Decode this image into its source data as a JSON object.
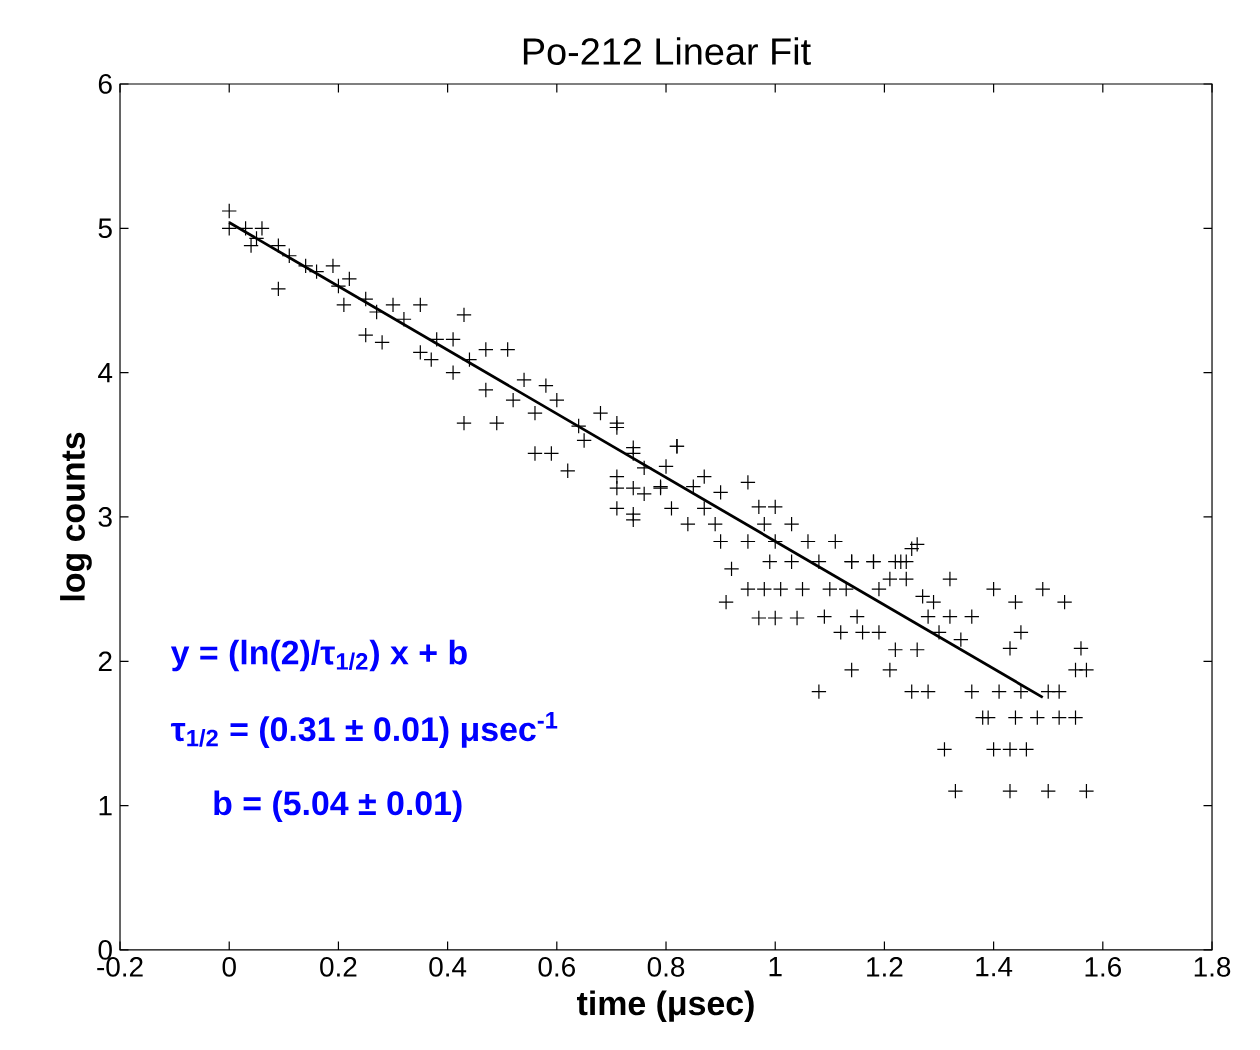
{
  "chart_data": {
    "type": "scatter",
    "title": "Po-212 Linear Fit",
    "xlabel": "time (μsec)",
    "ylabel": "log counts",
    "xlim": [
      -0.2,
      1.8
    ],
    "xticks": [
      -0.2,
      0,
      0.2,
      0.4,
      0.6,
      0.8,
      1,
      1.2,
      1.4,
      1.6,
      1.8
    ],
    "ylim": [
      0,
      6
    ],
    "yticks": [
      0,
      1,
      2,
      3,
      4,
      5,
      6
    ],
    "grid": false,
    "annotations": [
      "y = (ln(2)/τ$_{1/2}$) x + b",
      "τ$_{1/2}$ = (0.31 ± 0.01) μsec$^{-1}$",
      "b = (5.04 ± 0.01)"
    ],
    "series": [
      {
        "marker": "cross",
        "color": "#000000",
        "x": [
          0.0,
          0.0,
          0.03,
          0.05,
          0.06,
          0.04,
          0.09,
          0.11,
          0.09,
          0.14,
          0.16,
          0.19,
          0.2,
          0.22,
          0.21,
          0.25,
          0.27,
          0.3,
          0.25,
          0.28,
          0.32,
          0.35,
          0.43,
          0.35,
          0.38,
          0.37,
          0.41,
          0.41,
          0.44,
          0.47,
          0.51,
          0.43,
          0.47,
          0.49,
          0.52,
          0.54,
          0.58,
          0.56,
          0.6,
          0.56,
          0.59,
          0.62,
          0.64,
          0.68,
          0.71,
          0.65,
          0.71,
          0.74,
          0.76,
          0.8,
          0.82,
          0.74,
          0.79,
          1.33,
          1.43,
          1.5,
          1.57,
          1.31,
          1.4,
          1.43,
          1.46,
          1.38,
          1.39,
          1.44,
          1.48,
          1.52,
          1.55,
          1.36,
          1.41,
          1.45,
          1.5,
          1.52,
          1.55,
          1.57,
          1.56,
          1.45,
          1.43,
          1.4,
          1.44,
          1.49,
          1.53,
          1.32,
          1.25,
          1.22,
          1.24,
          1.18,
          1.14,
          1.21,
          1.24,
          1.27,
          1.29,
          1.28,
          1.32,
          1.36,
          1.3,
          1.34,
          1.22,
          1.26,
          1.21,
          1.14,
          1.25,
          1.28,
          1.08,
          1.12,
          1.16,
          1.19,
          1.09,
          1.15,
          0.97,
          1.0,
          1.04,
          0.91,
          0.95,
          0.98,
          1.01,
          1.05,
          1.1,
          1.13,
          1.19,
          0.92,
          0.99,
          1.03,
          1.08,
          1.14,
          1.18,
          1.23,
          0.9,
          0.95,
          1.0,
          1.06,
          1.11,
          1.26,
          0.89,
          0.84,
          0.98,
          1.03,
          0.74,
          0.71,
          0.81,
          0.87,
          0.97,
          1.0,
          0.82,
          0.95,
          0.87,
          0.85,
          0.9,
          0.71,
          0.74,
          0.76,
          0.79,
          0.71,
          0.74
        ],
        "values": [
          5.12,
          5.0,
          5.0,
          4.93,
          5.0,
          4.88,
          4.88,
          4.81,
          4.58,
          4.74,
          4.7,
          4.74,
          4.6,
          4.65,
          4.47,
          4.51,
          4.42,
          4.47,
          4.26,
          4.21,
          4.37,
          4.47,
          4.4,
          4.14,
          4.23,
          4.09,
          4.23,
          4.0,
          4.09,
          4.16,
          4.16,
          3.65,
          3.88,
          3.65,
          3.81,
          3.95,
          3.91,
          3.72,
          3.81,
          3.44,
          3.44,
          3.32,
          3.63,
          3.72,
          3.65,
          3.53,
          3.28,
          3.02,
          3.16,
          3.35,
          3.49,
          3.44,
          3.21,
          1.1,
          1.1,
          1.1,
          1.1,
          1.39,
          1.39,
          1.39,
          1.39,
          1.61,
          1.61,
          1.61,
          1.61,
          1.61,
          1.61,
          1.79,
          1.79,
          1.79,
          1.79,
          1.79,
          1.94,
          1.94,
          2.09,
          2.2,
          2.09,
          2.5,
          2.41,
          2.5,
          2.41,
          2.57,
          2.78,
          2.69,
          2.69,
          2.69,
          2.69,
          2.57,
          2.57,
          2.45,
          2.41,
          2.31,
          2.31,
          2.31,
          2.2,
          2.15,
          2.08,
          2.08,
          1.94,
          1.94,
          1.79,
          1.79,
          1.79,
          2.2,
          2.2,
          2.2,
          2.31,
          2.31,
          2.3,
          2.3,
          2.3,
          2.41,
          2.5,
          2.5,
          2.5,
          2.5,
          2.5,
          2.5,
          2.5,
          2.64,
          2.69,
          2.69,
          2.69,
          2.69,
          2.69,
          2.69,
          2.83,
          2.83,
          2.83,
          2.83,
          2.83,
          2.81,
          2.95,
          2.95,
          2.95,
          2.95,
          2.98,
          3.06,
          3.06,
          3.06,
          3.07,
          3.07,
          3.49,
          3.24,
          3.28,
          3.21,
          3.17,
          3.62,
          3.48,
          3.34,
          3.2,
          3.2,
          3.2
        ]
      },
      {
        "type": "line",
        "marker": "none",
        "color": "#000000",
        "x": [
          0,
          1.49
        ],
        "values": [
          5.04,
          1.75
        ]
      }
    ]
  }
}
